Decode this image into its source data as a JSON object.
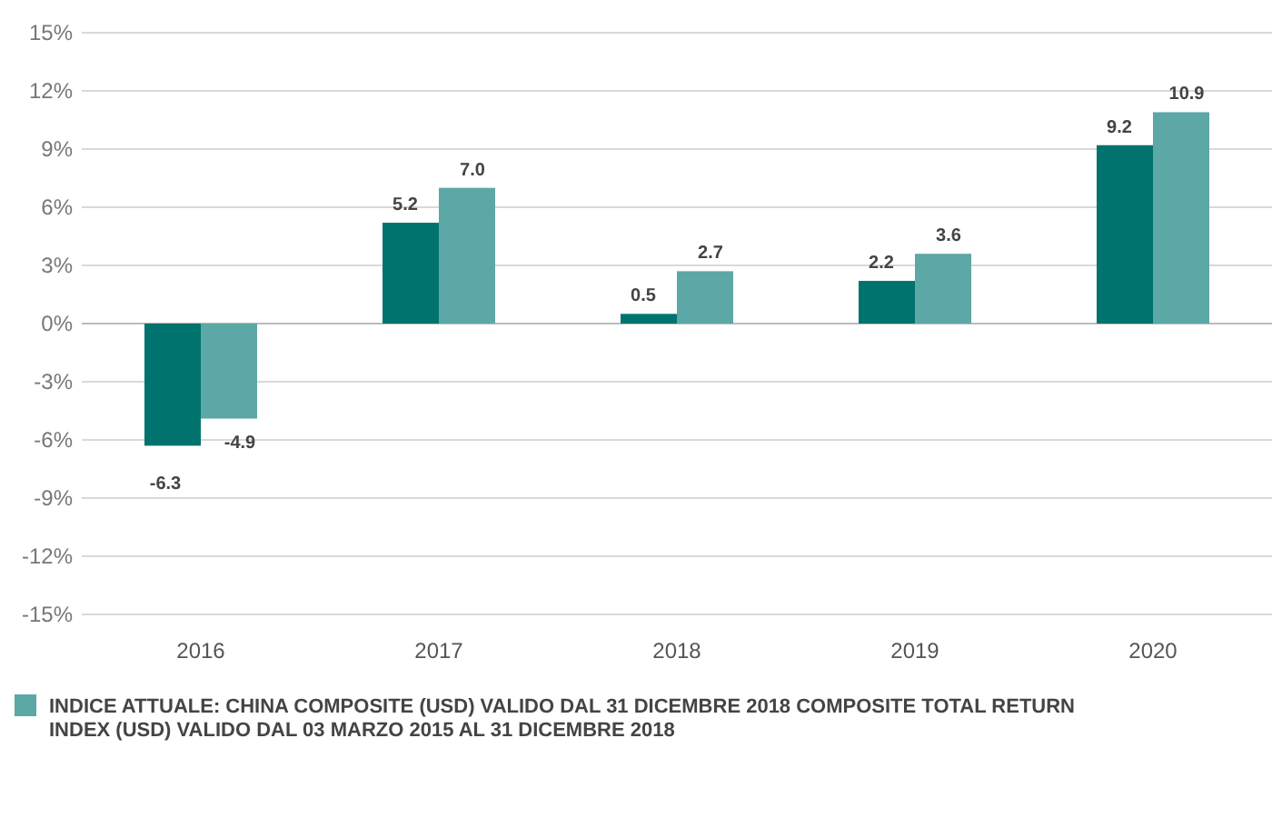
{
  "chart_data": {
    "type": "bar",
    "categories": [
      "2016",
      "2017",
      "2018",
      "2019",
      "2020"
    ],
    "series": [
      {
        "color": "#00736e",
        "values": [
          -6.3,
          5.2,
          0.5,
          2.2,
          9.2
        ],
        "value_labels": [
          "-6.3",
          "5.2",
          "0.5",
          "2.2",
          "9.2"
        ]
      },
      {
        "name": "INDICE ATTUALE: CHINA COMPOSITE (USD) VALIDO DAL 31 DICEMBRE 2018 COMPOSITE TOTAL RETURN INDEX (USD) VALIDO DAL 03 MARZO 2015 AL 31 DICEMBRE 2018",
        "color": "#5ba8a6",
        "values": [
          -4.9,
          7.0,
          2.7,
          3.6,
          10.9
        ],
        "value_labels": [
          "-4.9",
          "7.0",
          "2.7",
          "3.6",
          "10.9"
        ]
      }
    ],
    "ylim": [
      -15,
      15
    ],
    "yticks": [
      {
        "value": -15,
        "label": "-15%"
      },
      {
        "value": -12,
        "label": "-12%"
      },
      {
        "value": -9,
        "label": "-9%"
      },
      {
        "value": -6,
        "label": "-6%"
      },
      {
        "value": -3,
        "label": "-3%"
      },
      {
        "value": 0,
        "label": "0%"
      },
      {
        "value": 3,
        "label": "3%"
      },
      {
        "value": 6,
        "label": "6%"
      },
      {
        "value": 9,
        "label": "9%"
      },
      {
        "value": 12,
        "label": "12%"
      },
      {
        "value": 15,
        "label": "15%"
      }
    ],
    "grid": "y",
    "legend": "bottom"
  }
}
